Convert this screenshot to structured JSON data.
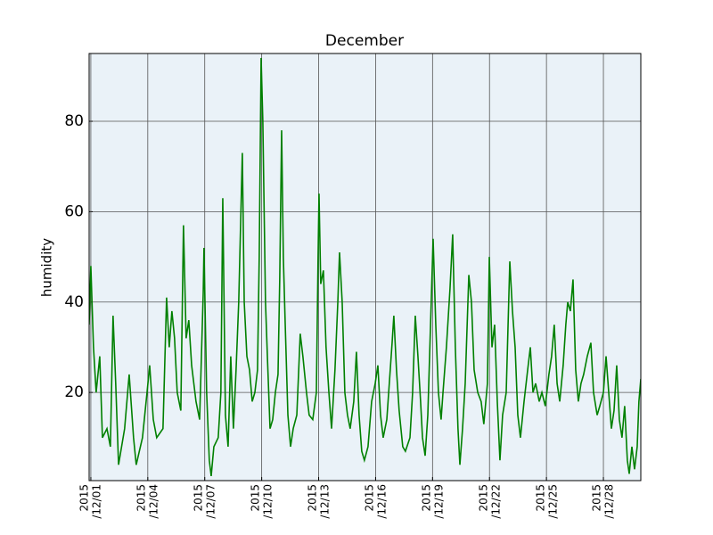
{
  "chart_data": {
    "type": "line",
    "title": "December",
    "ylabel": "humidity",
    "color": "#008000",
    "background": "#eaf2f8",
    "grid": true,
    "xlim": [
      0.91,
      29.97
    ],
    "ylim": [
      0.5,
      95
    ],
    "xticks": [
      {
        "value": 1,
        "label": "2015\n/12/01"
      },
      {
        "value": 4,
        "label": "2015\n/12/04"
      },
      {
        "value": 7,
        "label": "2015\n/12/07"
      },
      {
        "value": 10,
        "label": "2015\n/12/10"
      },
      {
        "value": 13,
        "label": "2015\n/12/13"
      },
      {
        "value": 16,
        "label": "2015\n/12/16"
      },
      {
        "value": 19,
        "label": "2015\n/12/19"
      },
      {
        "value": 22,
        "label": "2015\n/12/22"
      },
      {
        "value": 25,
        "label": "2015\n/12/25"
      },
      {
        "value": 28,
        "label": "2015\n/12/28"
      }
    ],
    "yticks": [
      20,
      40,
      60,
      80
    ],
    "x": [
      0.91,
      1.0,
      1.14,
      1.28,
      1.47,
      1.61,
      1.85,
      2.03,
      2.17,
      2.31,
      2.46,
      2.78,
      3.02,
      3.25,
      3.39,
      3.72,
      3.96,
      4.1,
      4.29,
      4.47,
      4.8,
      4.99,
      5.13,
      5.27,
      5.41,
      5.55,
      5.74,
      5.88,
      6.02,
      6.16,
      6.31,
      6.54,
      6.73,
      6.92,
      6.96,
      7.1,
      7.24,
      7.34,
      7.48,
      7.71,
      7.85,
      7.95,
      8.09,
      8.23,
      8.37,
      8.51,
      8.65,
      8.79,
      8.98,
      9.08,
      9.22,
      9.36,
      9.5,
      9.64,
      9.78,
      9.87,
      9.97,
      10.06,
      10.2,
      10.3,
      10.44,
      10.58,
      10.72,
      10.86,
      10.95,
      11.05,
      11.14,
      11.24,
      11.38,
      11.52,
      11.66,
      11.85,
      12.03,
      12.17,
      12.36,
      12.5,
      12.69,
      12.88,
      12.97,
      13.02,
      13.11,
      13.25,
      13.39,
      13.54,
      13.68,
      13.86,
      14.01,
      14.1,
      14.24,
      14.38,
      14.52,
      14.66,
      14.85,
      14.99,
      15.13,
      15.27,
      15.41,
      15.6,
      15.79,
      15.98,
      16.12,
      16.26,
      16.4,
      16.59,
      16.87,
      16.96,
      17.1,
      17.24,
      17.43,
      17.57,
      17.81,
      17.95,
      18.09,
      18.23,
      18.37,
      18.47,
      18.61,
      18.75,
      18.93,
      19.03,
      19.17,
      19.31,
      19.45,
      19.55,
      19.73,
      19.92,
      20.06,
      20.2,
      20.34,
      20.44,
      20.58,
      20.72,
      20.91,
      21.05,
      21.19,
      21.38,
      21.56,
      21.7,
      21.89,
      21.99,
      22.13,
      22.27,
      22.41,
      22.55,
      22.69,
      22.88,
      23.07,
      23.21,
      23.35,
      23.49,
      23.63,
      23.82,
      24.01,
      24.15,
      24.29,
      24.43,
      24.62,
      24.76,
      24.94,
      25.13,
      25.27,
      25.41,
      25.56,
      25.7,
      25.88,
      26.02,
      26.12,
      26.26,
      26.4,
      26.54,
      26.68,
      26.82,
      26.96,
      27.15,
      27.34,
      27.48,
      27.67,
      27.81,
      28.0,
      28.14,
      28.28,
      28.42,
      28.56,
      28.7,
      28.84,
      28.98,
      29.12,
      29.26,
      29.36,
      29.5,
      29.64,
      29.78,
      29.87,
      29.97
    ],
    "values": [
      35,
      48,
      30,
      20,
      28,
      10,
      12,
      8,
      37,
      22,
      4,
      12,
      24,
      10,
      4,
      10,
      20,
      26,
      14,
      10,
      12,
      41,
      30,
      38,
      32,
      20,
      16,
      57,
      32,
      36,
      26,
      18,
      14,
      42,
      52,
      20,
      5,
      1.5,
      8,
      10,
      20,
      63,
      15,
      8,
      28,
      12,
      25,
      40,
      73,
      40,
      28,
      25,
      18,
      20,
      25,
      50,
      94,
      80,
      40,
      28,
      12,
      14,
      20,
      24,
      45,
      78,
      50,
      35,
      15,
      8,
      12,
      15,
      33,
      28,
      20,
      15,
      14,
      20,
      50,
      64,
      44,
      47,
      30,
      20,
      12,
      25,
      40,
      51,
      40,
      20,
      15,
      12,
      18,
      29,
      15,
      7,
      5,
      8,
      18,
      22,
      26,
      15,
      10,
      14,
      31,
      37,
      25,
      16,
      8,
      7,
      10,
      20,
      37,
      28,
      18,
      10,
      6,
      15,
      40,
      54,
      35,
      20,
      14,
      20,
      30,
      43,
      55,
      30,
      12,
      4,
      12,
      22,
      46,
      40,
      25,
      20,
      18,
      13,
      22,
      50,
      30,
      35,
      18,
      5,
      15,
      20,
      49,
      38,
      30,
      15,
      10,
      18,
      25,
      30,
      20,
      22,
      18,
      20,
      17,
      24,
      28,
      35,
      22,
      18,
      26,
      35,
      40,
      38,
      45,
      25,
      18,
      22,
      24,
      28,
      31,
      20,
      15,
      17,
      20,
      28,
      20,
      12,
      16,
      26,
      14,
      10,
      17,
      5,
      2,
      8,
      3,
      8,
      18,
      23
    ]
  }
}
